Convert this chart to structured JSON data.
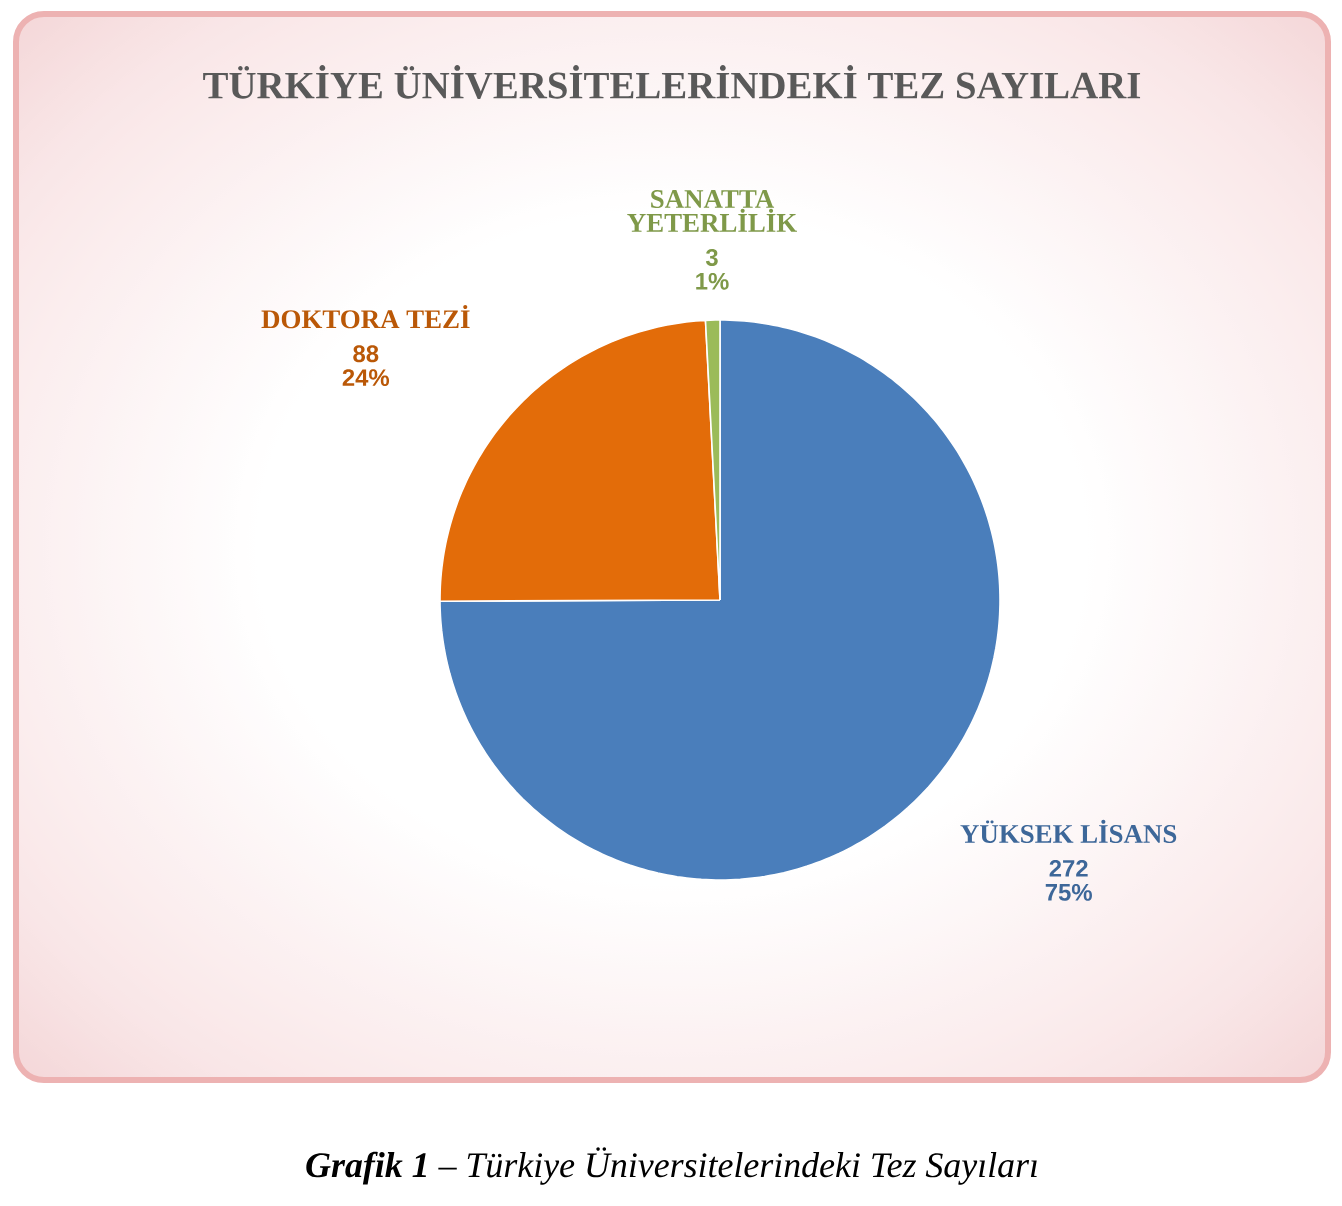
{
  "chart_data": {
    "type": "pie",
    "title": "TÜRKİYE ÜNİVERSİTELERİNDEKİ TEZ SAYILARI",
    "categories": [
      "YÜKSEK LİSANS",
      "DOKTORA TEZİ",
      "SANATTA YETERLİLİK"
    ],
    "values": [
      272,
      88,
      3
    ],
    "colors": [
      "#4a7ebb",
      "#e36c09",
      "#9bbb59"
    ],
    "value_labels": [
      "272\n75%",
      "88\n24%",
      "3\n1%"
    ],
    "annotations": [
      "**Grafik 1** – Türkiye Üniversitelerindeki Tez Sayıları"
    ]
  }
}
